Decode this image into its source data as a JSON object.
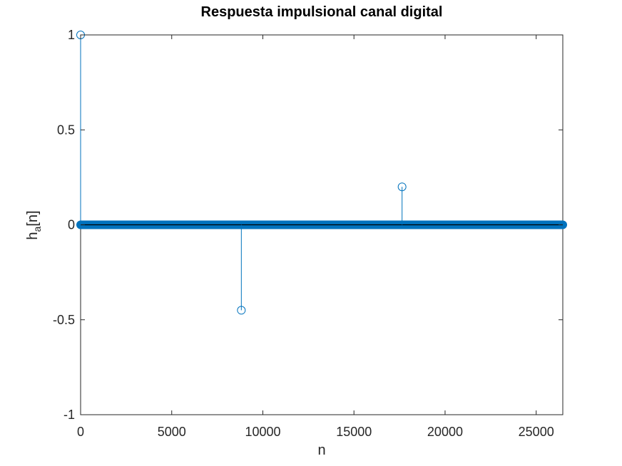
{
  "chart_data": {
    "type": "stem",
    "title": "Respuesta impulsional canal digital",
    "xlabel": "n",
    "ylabel": "h",
    "ylabel_subscript": "a",
    "ylabel_suffix": "[n]",
    "xlim": [
      0,
      26460
    ],
    "ylim": [
      -1,
      1
    ],
    "xticks": [
      0,
      5000,
      10000,
      15000,
      20000,
      25000
    ],
    "xtick_labels": [
      "0",
      "5000",
      "10000",
      "15000",
      "20000",
      "25000"
    ],
    "yticks": [
      -1,
      -0.5,
      0,
      0.5,
      1
    ],
    "ytick_labels": [
      "-1",
      "-0.5",
      "0",
      "0.5",
      "1"
    ],
    "grid": false,
    "series": [
      {
        "color": "#0072BD",
        "nonzero_points": [
          {
            "x": 0,
            "y": 1
          },
          {
            "x": 8820,
            "y": -0.45
          },
          {
            "x": 17640,
            "y": 0.2
          }
        ],
        "zero_range": [
          0,
          26460
        ]
      }
    ]
  }
}
